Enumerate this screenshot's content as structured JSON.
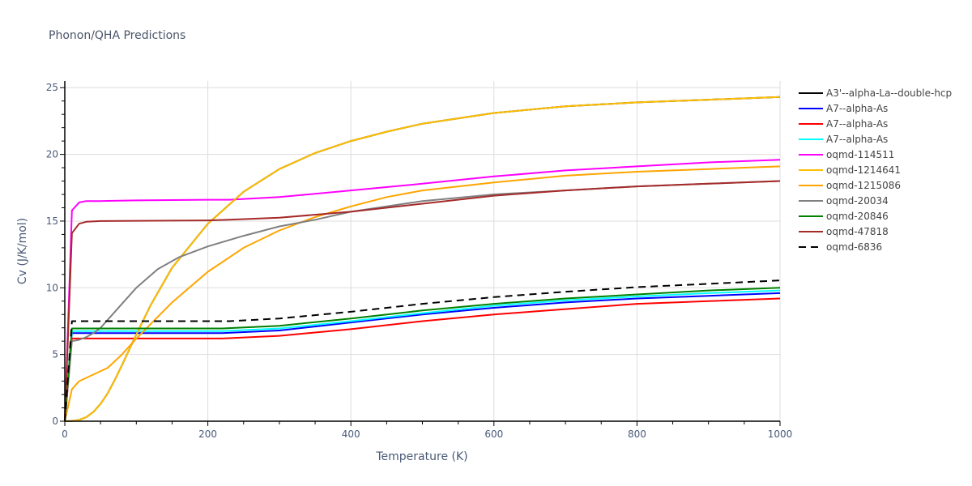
{
  "chart_data": {
    "type": "line",
    "title": "Phonon/QHA Predictions",
    "xlabel": "Temperature (K)",
    "ylabel": "Cv (J/K/mol)",
    "xlim": [
      0,
      1000
    ],
    "ylim": [
      0,
      25.5
    ],
    "xticks": [
      0,
      200,
      400,
      600,
      800,
      1000
    ],
    "yticks": [
      0,
      5,
      10,
      15,
      20,
      25
    ],
    "grid": true,
    "legend_position": "right",
    "series": [
      {
        "name": "A3'--alpha-La--double-hcp",
        "color": "#000000",
        "dash": false,
        "x": [
          0,
          10,
          20,
          30,
          40,
          50,
          60,
          70,
          80,
          100,
          120,
          150,
          200,
          250,
          300,
          350,
          400,
          450,
          500,
          600,
          700,
          800,
          900,
          1000
        ],
        "y": [
          0,
          0.02,
          0.1,
          0.3,
          0.7,
          1.3,
          2.1,
          3.1,
          4.2,
          6.5,
          8.7,
          11.5,
          14.8,
          17.2,
          18.9,
          20.1,
          21.0,
          21.7,
          22.3,
          23.1,
          23.6,
          23.9,
          24.1,
          24.3
        ]
      },
      {
        "name": "A7--alpha-As",
        "color": "#0000ff",
        "dash": false,
        "x": [
          0,
          10,
          50,
          100,
          200,
          220,
          300,
          400,
          500,
          600,
          700,
          800,
          900,
          1000
        ],
        "y": [
          0,
          6.6,
          6.6,
          6.6,
          6.6,
          6.6,
          6.8,
          7.4,
          8.0,
          8.5,
          8.9,
          9.2,
          9.4,
          9.6
        ]
      },
      {
        "name": "A7--alpha-As",
        "color": "#ff0000",
        "dash": false,
        "x": [
          0,
          10,
          50,
          100,
          200,
          220,
          300,
          400,
          500,
          600,
          700,
          800,
          900,
          1000
        ],
        "y": [
          0,
          6.2,
          6.2,
          6.2,
          6.2,
          6.2,
          6.4,
          6.9,
          7.5,
          8.0,
          8.4,
          8.8,
          9.0,
          9.2
        ]
      },
      {
        "name": "A7--alpha-As",
        "color": "#00ffff",
        "dash": false,
        "x": [
          0,
          10,
          50,
          100,
          200,
          220,
          300,
          400,
          500,
          600,
          700,
          800,
          900,
          1000
        ],
        "y": [
          0,
          6.75,
          6.75,
          6.75,
          6.75,
          6.75,
          6.95,
          7.5,
          8.1,
          8.65,
          9.05,
          9.35,
          9.6,
          9.8
        ]
      },
      {
        "name": "oqmd-114511",
        "color": "#ff00ff",
        "dash": false,
        "x": [
          0,
          10,
          20,
          30,
          50,
          100,
          200,
          230,
          300,
          400,
          500,
          600,
          700,
          800,
          900,
          1000
        ],
        "y": [
          0,
          15.8,
          16.4,
          16.5,
          16.5,
          16.55,
          16.6,
          16.6,
          16.8,
          17.3,
          17.8,
          18.35,
          18.8,
          19.1,
          19.4,
          19.6
        ]
      },
      {
        "name": "oqmd-1214641",
        "color": "#ffbf00",
        "dash": false,
        "x": [
          0,
          10,
          20,
          30,
          40,
          50,
          60,
          70,
          80,
          100,
          120,
          150,
          200,
          250,
          300,
          350,
          400,
          450,
          500,
          600,
          700,
          800,
          900,
          1000
        ],
        "y": [
          0,
          0.02,
          0.1,
          0.3,
          0.7,
          1.3,
          2.1,
          3.1,
          4.2,
          6.5,
          8.7,
          11.5,
          14.8,
          17.2,
          18.9,
          20.1,
          21.0,
          21.7,
          22.3,
          23.1,
          23.6,
          23.9,
          24.1,
          24.3
        ]
      },
      {
        "name": "oqmd-1215086",
        "color": "#ffa500",
        "dash": false,
        "x": [
          0,
          10,
          20,
          40,
          60,
          80,
          100,
          150,
          200,
          250,
          300,
          350,
          400,
          450,
          500,
          600,
          700,
          800,
          900,
          1000
        ],
        "y": [
          0,
          2.4,
          3.0,
          3.5,
          4.0,
          5.0,
          6.2,
          8.9,
          11.2,
          13.0,
          14.3,
          15.3,
          16.1,
          16.8,
          17.3,
          17.9,
          18.4,
          18.7,
          18.9,
          19.1
        ]
      },
      {
        "name": "oqmd-20034",
        "color": "#808080",
        "dash": false,
        "x": [
          0,
          10,
          20,
          30,
          40,
          50,
          60,
          80,
          100,
          130,
          160,
          200,
          250,
          300,
          350,
          400,
          500,
          600,
          700,
          800,
          900,
          1000
        ],
        "y": [
          0,
          6.0,
          6.1,
          6.3,
          6.6,
          7.0,
          7.6,
          8.8,
          10.0,
          11.4,
          12.3,
          13.1,
          13.9,
          14.6,
          15.1,
          15.7,
          16.5,
          17.0,
          17.3,
          17.6,
          17.8,
          18.0
        ]
      },
      {
        "name": "oqmd-20846",
        "color": "#008000",
        "dash": false,
        "x": [
          0,
          10,
          50,
          100,
          200,
          220,
          300,
          400,
          500,
          600,
          700,
          800,
          900,
          1000
        ],
        "y": [
          0,
          6.95,
          6.95,
          6.95,
          6.95,
          6.95,
          7.15,
          7.7,
          8.3,
          8.8,
          9.2,
          9.5,
          9.8,
          10.0
        ]
      },
      {
        "name": "oqmd-47818",
        "color": "#a52a2a",
        "dash": false,
        "x": [
          0,
          10,
          20,
          30,
          50,
          100,
          200,
          230,
          300,
          400,
          500,
          600,
          700,
          800,
          900,
          1000
        ],
        "y": [
          0,
          14.1,
          14.8,
          14.95,
          15.0,
          15.02,
          15.05,
          15.1,
          15.25,
          15.7,
          16.3,
          16.9,
          17.3,
          17.6,
          17.8,
          18.0
        ]
      },
      {
        "name": "oqmd-6836",
        "color": "#000000",
        "dash": true,
        "x": [
          0,
          10,
          50,
          100,
          200,
          230,
          300,
          400,
          500,
          600,
          700,
          800,
          900,
          1000
        ],
        "y": [
          0,
          7.5,
          7.5,
          7.5,
          7.5,
          7.5,
          7.7,
          8.2,
          8.8,
          9.3,
          9.7,
          10.05,
          10.3,
          10.55
        ]
      }
    ]
  },
  "colors": {
    "grid": "#dddddd",
    "axis": "#000000",
    "text": "#4a5a78"
  }
}
